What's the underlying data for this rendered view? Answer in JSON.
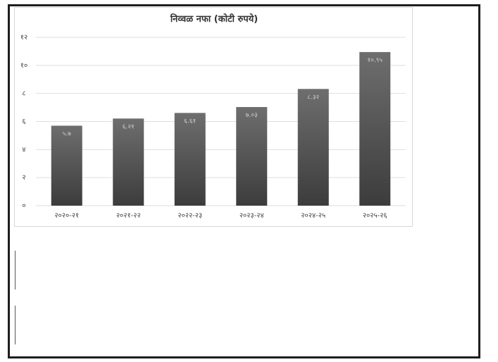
{
  "chart_data": {
    "type": "bar",
    "title": "निव्वळ नफा (कोटी रुपये)",
    "categories": [
      "२०२०-२१",
      "२०२१-२२",
      "२०२२-२३",
      "२०२३-२४",
      "२०२४-२५",
      "२०२५-२६"
    ],
    "values": [
      5.7,
      6.21,
      6.61,
      7.03,
      8.32,
      10.95
    ],
    "value_labels": [
      "५.७",
      "६.२१",
      "६.६१",
      "७.०३",
      "८.३२",
      "१०.९५"
    ],
    "y_ticks": [
      0,
      2,
      4,
      6,
      8,
      10,
      12
    ],
    "y_tick_labels": [
      "०",
      "२",
      "४",
      "६",
      "८",
      "१०",
      "१२"
    ],
    "ylim": [
      0,
      12
    ],
    "xlabel": "",
    "ylabel": "",
    "grid": true,
    "bar_color_top": "#6e6e6e",
    "bar_color_bottom": "#3c3c3c"
  }
}
